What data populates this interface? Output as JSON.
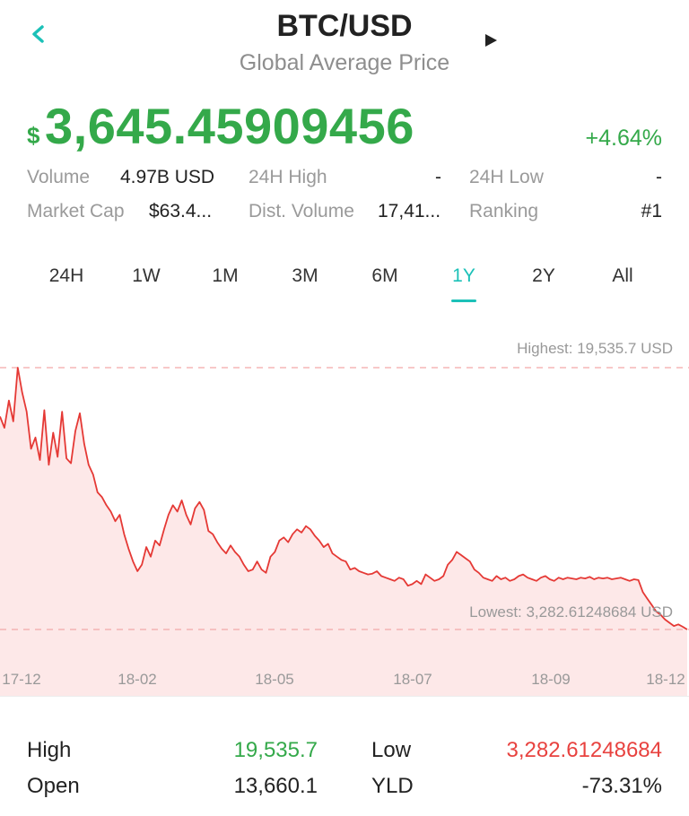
{
  "header": {
    "title": "BTC/USD",
    "subtitle": "Global Average Price",
    "back_icon": "chevron-left-icon",
    "play_icon": "play-icon"
  },
  "price": {
    "currency_symbol": "$",
    "value": "3,645.45909456",
    "change": "+4.64%"
  },
  "stats": [
    {
      "label": "Volume",
      "value": "4.97B USD"
    },
    {
      "label": "24H High",
      "value": "-"
    },
    {
      "label": "24H Low",
      "value": "-"
    },
    {
      "label": "Market Cap",
      "value": "$63.4..."
    },
    {
      "label": "Dist. Volume",
      "value": "17,41..."
    },
    {
      "label": "Ranking",
      "value": "#1"
    }
  ],
  "tabs": [
    {
      "label": "24H"
    },
    {
      "label": "1W"
    },
    {
      "label": "1M"
    },
    {
      "label": "3M"
    },
    {
      "label": "6M"
    },
    {
      "label": "1Y",
      "active": true
    },
    {
      "label": "2Y"
    },
    {
      "label": "All"
    }
  ],
  "chart_data": {
    "type": "area",
    "highest_label": "Highest: 19,535.7 USD",
    "lowest_label": "Lowest: 3,282.61248684 USD",
    "x_ticks": [
      "17-12",
      "18-02",
      "18-05",
      "18-07",
      "18-09",
      "18-12"
    ],
    "highest": 19535.7,
    "lowest": 3282.61248684,
    "series": [
      {
        "values": [
          16500,
          15800,
          17500,
          16200,
          19535.7,
          18000,
          16800,
          14500,
          15200,
          13800,
          16900,
          13500,
          15500,
          14000,
          16800,
          13900,
          13600,
          15600,
          16700,
          14800,
          13500,
          12900,
          11800,
          11500,
          11000,
          10600,
          10000,
          10400,
          9200,
          8300,
          7500,
          6900,
          7300,
          8400,
          7800,
          8800,
          8500,
          9500,
          10400,
          11000,
          10600,
          11300,
          10400,
          9800,
          10800,
          11200,
          10700,
          9400,
          9200,
          8700,
          8300,
          8000,
          8500,
          8100,
          7800,
          7300,
          6900,
          7000,
          7500,
          7000,
          6800,
          7800,
          8100,
          8800,
          9000,
          8700,
          9200,
          9500,
          9300,
          9700,
          9500,
          9100,
          8800,
          8400,
          8600,
          8000,
          7800,
          7600,
          7500,
          7000,
          7100,
          6900,
          6800,
          6700,
          6750,
          6900,
          6600,
          6500,
          6400,
          6300,
          6500,
          6400,
          6000,
          6100,
          6300,
          6100,
          6700,
          6500,
          6300,
          6400,
          6600,
          7300,
          7600,
          8100,
          7900,
          7700,
          7500,
          7000,
          6800,
          6500,
          6400,
          6300,
          6600,
          6400,
          6500,
          6300,
          6400,
          6600,
          6700,
          6500,
          6400,
          6300,
          6500,
          6600,
          6400,
          6300,
          6500,
          6400,
          6500,
          6450,
          6400,
          6500,
          6450,
          6550,
          6400,
          6500,
          6450,
          6500,
          6400,
          6450,
          6500,
          6400,
          6300,
          6400,
          6350,
          5600,
          5200,
          4800,
          4400,
          4200,
          3900,
          3700,
          3500,
          3600,
          3450,
          3282.61248684
        ]
      }
    ]
  },
  "bottom": {
    "high_label": "High",
    "high_value": "19,535.7",
    "low_label": "Low",
    "low_value": "3,282.61248684",
    "open_label": "Open",
    "open_value": "13,660.1",
    "yld_label": "YLD",
    "yld_value": "-73.31%"
  },
  "colors": {
    "accent": "#1cc1b8",
    "positive": "#34a94a",
    "negative": "#e8423f",
    "chart_line": "#e53935",
    "chart_fill": "#fde8e8"
  }
}
